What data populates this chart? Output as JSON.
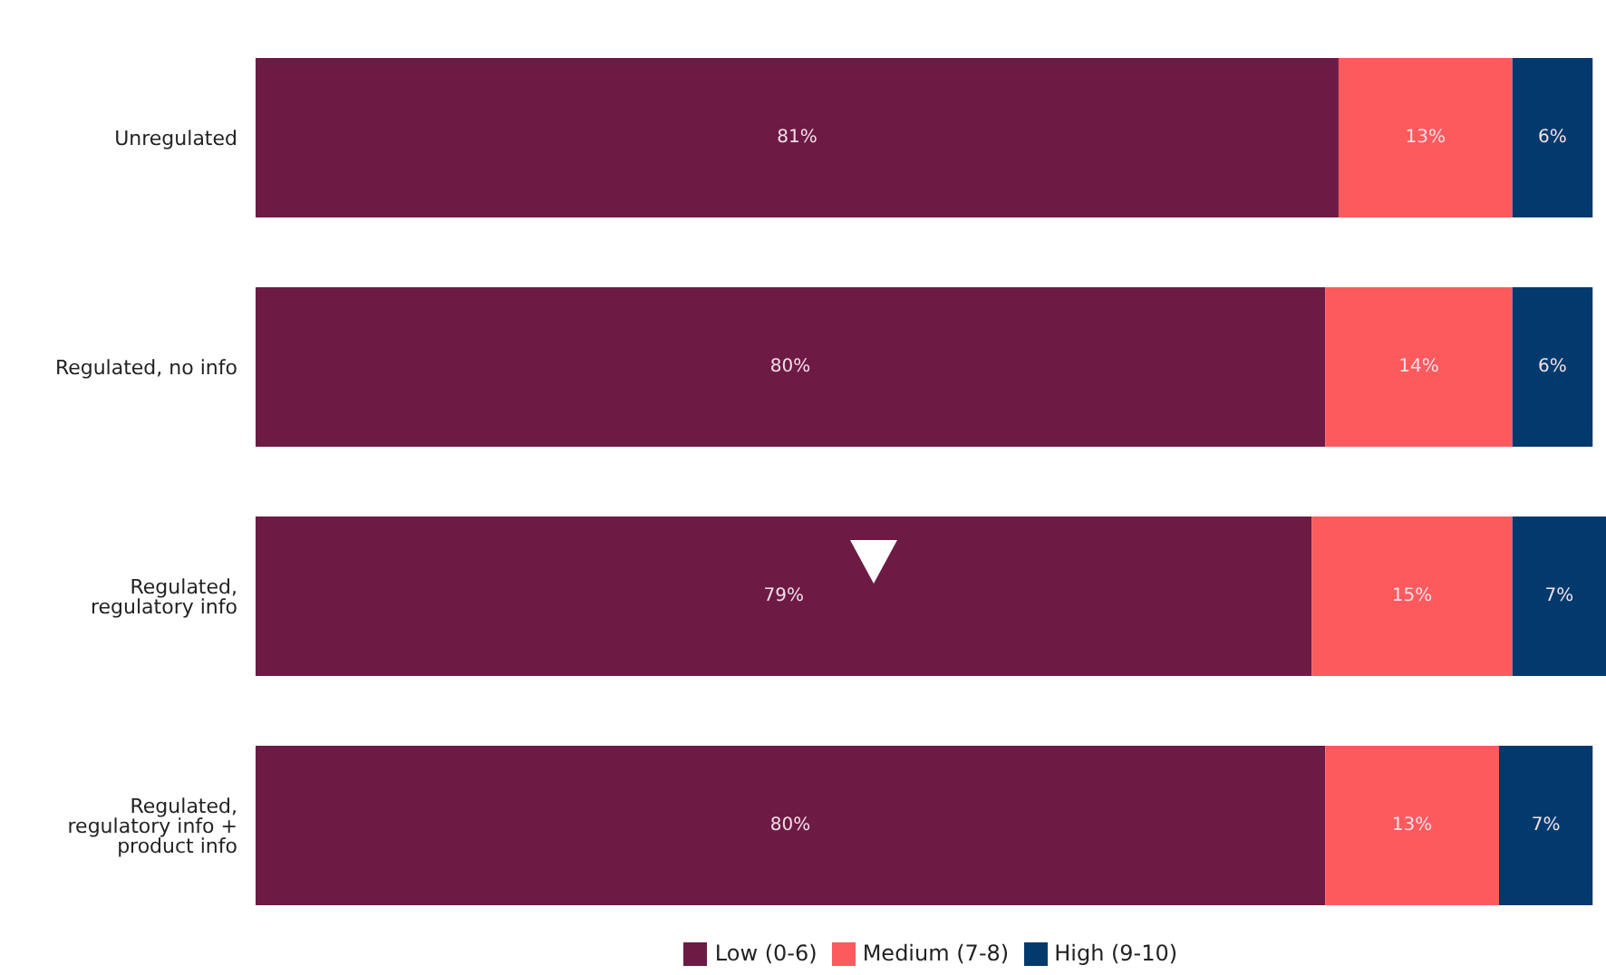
{
  "chart_data": {
    "type": "bar",
    "orientation": "horizontal",
    "stacked": true,
    "tick_labels": false,
    "categories": [
      "Unregulated",
      "Regulated, no info",
      "Regulated, regulatory info",
      "Regulated, regulatory info + product info"
    ],
    "series": [
      {
        "name": "Low (0-6)",
        "color": "#6d1a45",
        "values": [
          81,
          80,
          79,
          80
        ],
        "value_labels": [
          "81%",
          "80%",
          "79%",
          "80%"
        ]
      },
      {
        "name": "Medium (7-8)",
        "color": "#fd5a5e",
        "values": [
          13,
          14,
          15,
          13
        ],
        "value_labels": [
          "13%",
          "14%",
          "15%",
          "13%"
        ]
      },
      {
        "name": "High (9-10)",
        "color": "#033a6e",
        "values": [
          6,
          6,
          7,
          7
        ],
        "value_labels": [
          "6%",
          "6%",
          "7%",
          "7%"
        ]
      }
    ],
    "legend": "bottom",
    "grid": false
  }
}
